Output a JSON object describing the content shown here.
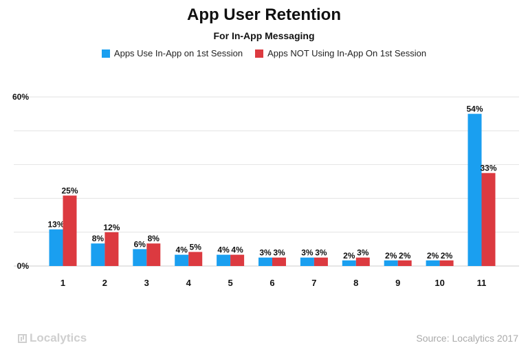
{
  "title": "App User Retention",
  "subtitle": "For In-App Messaging",
  "legend": [
    {
      "label": "Apps Use In-App on 1st Session",
      "color": "#1a9ff0"
    },
    {
      "label": "Apps NOT Using In-App On 1st Session",
      "color": "#dc3a40"
    }
  ],
  "footer": {
    "logo": "Localytics",
    "source": "Source: Localytics 2017"
  },
  "chart_data": {
    "type": "bar",
    "categories": [
      "1",
      "2",
      "3",
      "4",
      "5",
      "6",
      "7",
      "8",
      "9",
      "10",
      "11"
    ],
    "series": [
      {
        "name": "Apps Use In-App on 1st Session",
        "color": "#1a9ff0",
        "values": [
          13,
          8,
          6,
          4,
          4,
          3,
          3,
          2,
          2,
          2,
          54
        ],
        "labels": [
          "13%",
          "8%",
          "6%",
          "4%",
          "4%",
          "3%",
          "3%",
          "2%",
          "2%",
          "2%",
          "54%"
        ]
      },
      {
        "name": "Apps NOT Using In-App On 1st Session",
        "color": "#dc3a40",
        "values": [
          25,
          12,
          8,
          5,
          4,
          3,
          3,
          3,
          2,
          2,
          33
        ],
        "labels": [
          "25%",
          "12%",
          "8%",
          "5%",
          "4%",
          "3%",
          "3%",
          "3%",
          "2%",
          "2%",
          "33%"
        ]
      }
    ],
    "ylim": [
      0,
      60
    ],
    "yticks": [
      {
        "value": 0,
        "label": "0%"
      },
      {
        "value": 60,
        "label": "60%"
      }
    ],
    "gridlines": [
      0,
      12,
      24,
      36,
      48,
      60
    ],
    "grid": true,
    "legend_position": "top-center"
  }
}
